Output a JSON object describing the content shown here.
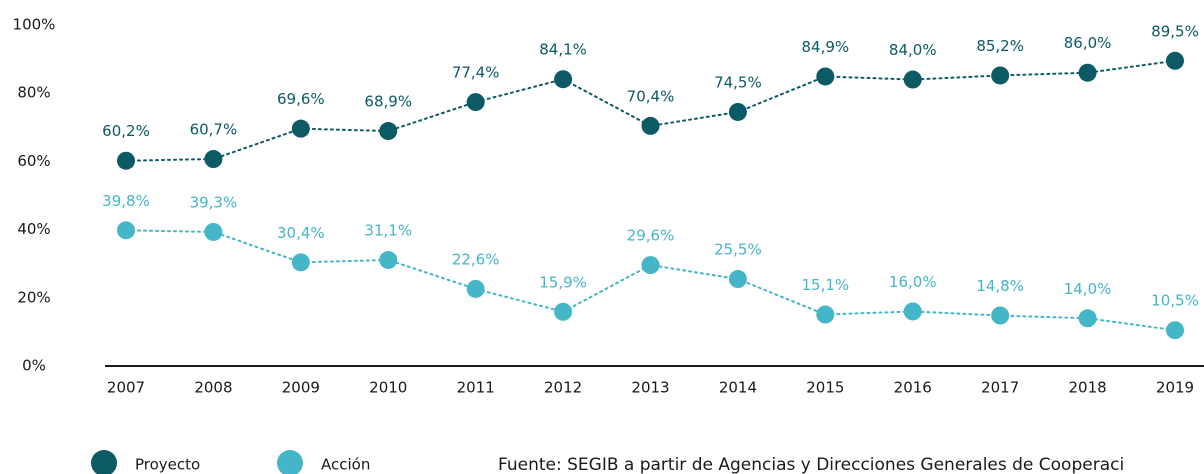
{
  "chart_data": {
    "type": "line",
    "categories": [
      "2007",
      "2008",
      "2009",
      "2010",
      "2011",
      "2012",
      "2013",
      "2014",
      "2015",
      "2016",
      "2017",
      "2018",
      "2019"
    ],
    "series": [
      {
        "name": "Proyecto",
        "color": "#0b5a66",
        "values": [
          60.2,
          60.7,
          69.6,
          68.9,
          77.4,
          84.1,
          70.4,
          74.5,
          84.9,
          84.0,
          85.2,
          86.0,
          89.5
        ],
        "value_labels": [
          "60,2%",
          "60,7%",
          "69,6%",
          "68,9%",
          "77,4%",
          "84,1%",
          "70,4%",
          "74,5%",
          "84,9%",
          "84,0%",
          "85,2%",
          "86,0%",
          "89,5%"
        ]
      },
      {
        "name": "Acción",
        "color": "#45b5c8",
        "values": [
          39.8,
          39.3,
          30.4,
          31.1,
          22.6,
          15.9,
          29.6,
          25.5,
          15.1,
          16.0,
          14.8,
          14.0,
          10.5
        ],
        "value_labels": [
          "39,8%",
          "39,3%",
          "30,4%",
          "31,1%",
          "22,6%",
          "15,9%",
          "29,6%",
          "25,5%",
          "15,1%",
          "16,0%",
          "14,8%",
          "14,0%",
          "10,5%"
        ]
      }
    ],
    "ylim": [
      0,
      100
    ],
    "yticks": [
      {
        "value": 0,
        "label": "0%"
      },
      {
        "value": 20,
        "label": "20%"
      },
      {
        "value": 40,
        "label": "40%"
      },
      {
        "value": 60,
        "label": "60%"
      },
      {
        "value": 80,
        "label": "80%"
      },
      {
        "value": 100,
        "label": "100%"
      }
    ],
    "grid": false,
    "legend": "bottom-left",
    "source": "Fuente: SEGIB a partir de Agencias y Direcciones Generales de Cooperaci"
  }
}
